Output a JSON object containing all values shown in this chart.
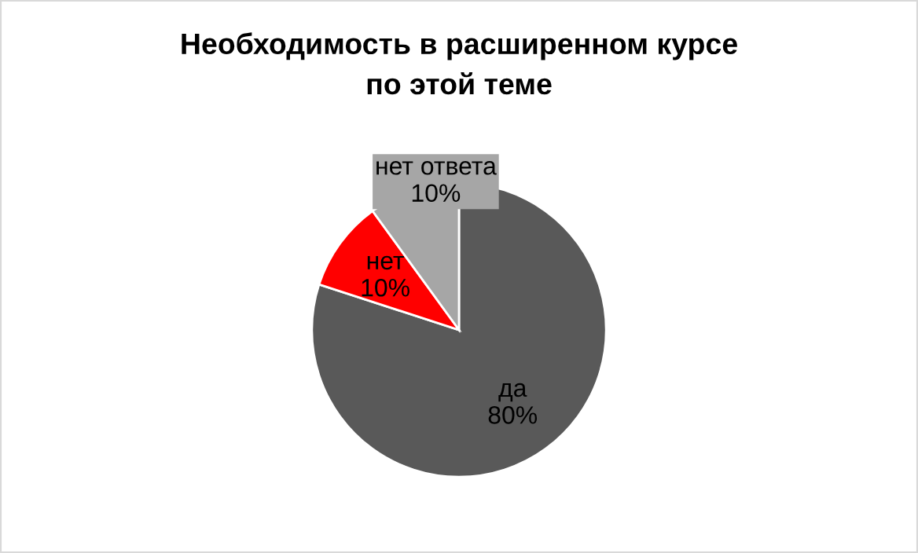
{
  "chart_data": {
    "type": "pie",
    "title": "Необходимость в расширенном курсе\nпо этой теме",
    "categories": [
      "да",
      "нет",
      "нет ответа"
    ],
    "values": [
      80,
      10,
      10
    ],
    "value_labels": [
      "80%",
      "10%",
      "10%"
    ],
    "colors": [
      "#595959",
      "#ff0000",
      "#a6a6a6"
    ],
    "legend": false
  }
}
